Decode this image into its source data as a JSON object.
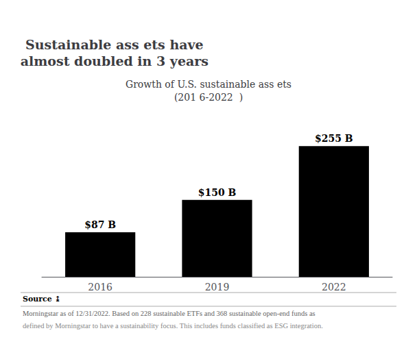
{
  "chart_data": {
    "type": "bar",
    "title": "Sustainable ass ets have\nalmost doubled in 3 years",
    "subtitle": "Growth of U.S. sustainable ass ets\n(201 6-2022  )",
    "categories": [
      "2016",
      "2019",
      "2022"
    ],
    "values": [
      87,
      150,
      255
    ],
    "value_labels": [
      "$87 B",
      "$150 B",
      "$255 B"
    ],
    "data_labels": true,
    "color": "#000000",
    "ylim": [
      0,
      310
    ],
    "grid": false,
    "tick_labels": "x",
    "annotations": [
      "Source ↨",
      "Morningstar as of 12/31/2022. Based on 228 sustainable ETFs and 368 sustainable open-end funds as",
      "defined by Morningstar to have a sustainability focus. This includes funds classified as ESG integration."
    ]
  }
}
